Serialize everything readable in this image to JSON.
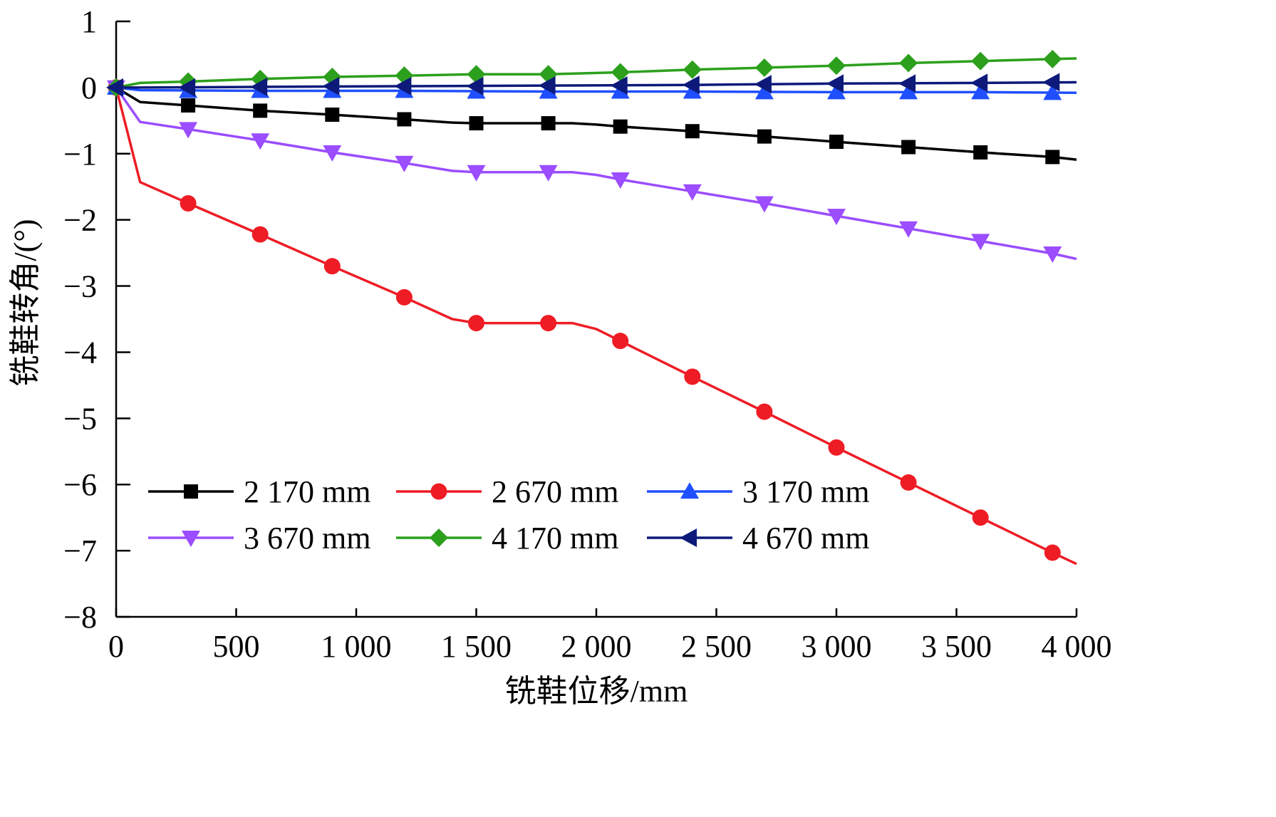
{
  "chart_data": {
    "type": "line",
    "xlabel": "铣鞋位移/mm",
    "ylabel": "铣鞋转角/(°)",
    "xlim": [
      0,
      4000
    ],
    "ylim": [
      -8,
      1
    ],
    "x_ticks": [
      0,
      500,
      1000,
      1500,
      2000,
      2500,
      3000,
      3500,
      4000
    ],
    "x_tick_labels": [
      "0",
      "500",
      "1 000",
      "1 500",
      "2 000",
      "2 500",
      "3 000",
      "3 500",
      "4 000"
    ],
    "y_ticks": [
      1,
      0,
      -1,
      -2,
      -3,
      -4,
      -5,
      -6,
      -7,
      -8
    ],
    "y_tick_labels": [
      "1",
      "0",
      "−1",
      "−2",
      "−3",
      "−4",
      "−5",
      "−6",
      "−7",
      "−8"
    ],
    "grid": false,
    "legend_position": "bottom-left, two rows of three",
    "series": [
      {
        "name": "2 170 mm",
        "color": "#000000",
        "marker": "square",
        "line": [
          [
            0,
            0
          ],
          [
            100,
            -0.22
          ],
          [
            300,
            -0.27
          ],
          [
            600,
            -0.35
          ],
          [
            900,
            -0.41
          ],
          [
            1200,
            -0.48
          ],
          [
            1400,
            -0.53
          ],
          [
            1500,
            -0.54
          ],
          [
            1800,
            -0.54
          ],
          [
            1900,
            -0.54
          ],
          [
            2000,
            -0.56
          ],
          [
            2100,
            -0.59
          ],
          [
            2400,
            -0.66
          ],
          [
            2700,
            -0.74
          ],
          [
            3000,
            -0.82
          ],
          [
            3300,
            -0.9
          ],
          [
            3600,
            -0.98
          ],
          [
            3900,
            -1.05
          ],
          [
            4000,
            -1.09
          ]
        ],
        "markers": [
          [
            0,
            0
          ],
          [
            300,
            -0.27
          ],
          [
            600,
            -0.35
          ],
          [
            900,
            -0.41
          ],
          [
            1200,
            -0.48
          ],
          [
            1500,
            -0.54
          ],
          [
            1800,
            -0.54
          ],
          [
            2100,
            -0.59
          ],
          [
            2400,
            -0.66
          ],
          [
            2700,
            -0.74
          ],
          [
            3000,
            -0.82
          ],
          [
            3300,
            -0.9
          ],
          [
            3600,
            -0.98
          ],
          [
            3900,
            -1.05
          ]
        ]
      },
      {
        "name": "2 670 mm",
        "color": "#ee1c25",
        "marker": "circle",
        "line": [
          [
            0,
            0
          ],
          [
            100,
            -1.43
          ],
          [
            300,
            -1.75
          ],
          [
            600,
            -2.22
          ],
          [
            900,
            -2.7
          ],
          [
            1200,
            -3.17
          ],
          [
            1400,
            -3.5
          ],
          [
            1500,
            -3.56
          ],
          [
            1800,
            -3.56
          ],
          [
            1900,
            -3.56
          ],
          [
            2000,
            -3.65
          ],
          [
            2100,
            -3.83
          ],
          [
            2400,
            -4.37
          ],
          [
            2700,
            -4.9
          ],
          [
            3000,
            -5.44
          ],
          [
            3300,
            -5.97
          ],
          [
            3600,
            -6.5
          ],
          [
            3900,
            -7.03
          ],
          [
            4000,
            -7.2
          ]
        ],
        "markers": [
          [
            0,
            0
          ],
          [
            300,
            -1.75
          ],
          [
            600,
            -2.22
          ],
          [
            900,
            -2.7
          ],
          [
            1200,
            -3.17
          ],
          [
            1500,
            -3.56
          ],
          [
            1800,
            -3.56
          ],
          [
            2100,
            -3.83
          ],
          [
            2400,
            -4.37
          ],
          [
            2700,
            -4.9
          ],
          [
            3000,
            -5.44
          ],
          [
            3300,
            -5.97
          ],
          [
            3600,
            -6.5
          ],
          [
            3900,
            -7.03
          ]
        ]
      },
      {
        "name": "3 170 mm",
        "color": "#1f4fff",
        "marker": "triangle-up",
        "line": [
          [
            0,
            0
          ],
          [
            100,
            -0.04
          ],
          [
            600,
            -0.05
          ],
          [
            1200,
            -0.05
          ],
          [
            1800,
            -0.06
          ],
          [
            2400,
            -0.06
          ],
          [
            3000,
            -0.07
          ],
          [
            3600,
            -0.07
          ],
          [
            4000,
            -0.08
          ]
        ],
        "markers": [
          [
            0,
            0
          ],
          [
            300,
            -0.05
          ],
          [
            600,
            -0.05
          ],
          [
            900,
            -0.05
          ],
          [
            1200,
            -0.05
          ],
          [
            1500,
            -0.06
          ],
          [
            1800,
            -0.06
          ],
          [
            2100,
            -0.06
          ],
          [
            2400,
            -0.06
          ],
          [
            2700,
            -0.07
          ],
          [
            3000,
            -0.07
          ],
          [
            3300,
            -0.07
          ],
          [
            3600,
            -0.07
          ],
          [
            3900,
            -0.08
          ]
        ]
      },
      {
        "name": "3 670 mm",
        "color": "#9b4dff",
        "marker": "triangle-down",
        "line": [
          [
            0,
            0
          ],
          [
            100,
            -0.52
          ],
          [
            300,
            -0.63
          ],
          [
            600,
            -0.8
          ],
          [
            900,
            -0.98
          ],
          [
            1200,
            -1.14
          ],
          [
            1400,
            -1.26
          ],
          [
            1500,
            -1.28
          ],
          [
            1800,
            -1.28
          ],
          [
            1900,
            -1.28
          ],
          [
            2000,
            -1.32
          ],
          [
            2100,
            -1.39
          ],
          [
            2400,
            -1.57
          ],
          [
            2700,
            -1.75
          ],
          [
            3000,
            -1.94
          ],
          [
            3300,
            -2.13
          ],
          [
            3600,
            -2.32
          ],
          [
            3900,
            -2.51
          ],
          [
            4000,
            -2.59
          ]
        ],
        "markers": [
          [
            0,
            0
          ],
          [
            300,
            -0.63
          ],
          [
            600,
            -0.8
          ],
          [
            900,
            -0.98
          ],
          [
            1200,
            -1.14
          ],
          [
            1500,
            -1.28
          ],
          [
            1800,
            -1.28
          ],
          [
            2100,
            -1.39
          ],
          [
            2400,
            -1.57
          ],
          [
            2700,
            -1.75
          ],
          [
            3000,
            -1.94
          ],
          [
            3300,
            -2.13
          ],
          [
            3600,
            -2.32
          ],
          [
            3900,
            -2.51
          ]
        ]
      },
      {
        "name": "4 170 mm",
        "color": "#2ca01c",
        "marker": "diamond",
        "line": [
          [
            0,
            0
          ],
          [
            100,
            0.07
          ],
          [
            300,
            0.09
          ],
          [
            600,
            0.13
          ],
          [
            900,
            0.16
          ],
          [
            1200,
            0.18
          ],
          [
            1500,
            0.2
          ],
          [
            1800,
            0.2
          ],
          [
            2100,
            0.23
          ],
          [
            2400,
            0.27
          ],
          [
            2700,
            0.3
          ],
          [
            3000,
            0.33
          ],
          [
            3300,
            0.37
          ],
          [
            3600,
            0.4
          ],
          [
            3900,
            0.43
          ],
          [
            4000,
            0.44
          ]
        ],
        "markers": [
          [
            0,
            0
          ],
          [
            300,
            0.09
          ],
          [
            600,
            0.13
          ],
          [
            900,
            0.16
          ],
          [
            1200,
            0.18
          ],
          [
            1500,
            0.2
          ],
          [
            1800,
            0.2
          ],
          [
            2100,
            0.23
          ],
          [
            2400,
            0.27
          ],
          [
            2700,
            0.3
          ],
          [
            3000,
            0.33
          ],
          [
            3300,
            0.37
          ],
          [
            3600,
            0.4
          ],
          [
            3900,
            0.43
          ]
        ]
      },
      {
        "name": "4 670 mm",
        "color": "#0d1a7a",
        "marker": "triangle-left",
        "line": [
          [
            0,
            0
          ],
          [
            100,
            0
          ],
          [
            600,
            0.01
          ],
          [
            1200,
            0.02
          ],
          [
            1800,
            0.03
          ],
          [
            2400,
            0.04
          ],
          [
            3000,
            0.06
          ],
          [
            3600,
            0.07
          ],
          [
            4000,
            0.08
          ]
        ],
        "markers": [
          [
            0,
            0
          ],
          [
            300,
            0
          ],
          [
            600,
            0.01
          ],
          [
            900,
            0.02
          ],
          [
            1200,
            0.02
          ],
          [
            1500,
            0.02
          ],
          [
            1800,
            0.03
          ],
          [
            2100,
            0.03
          ],
          [
            2400,
            0.04
          ],
          [
            2700,
            0.05
          ],
          [
            3000,
            0.06
          ],
          [
            3300,
            0.06
          ],
          [
            3600,
            0.07
          ],
          [
            3900,
            0.08
          ]
        ]
      }
    ]
  }
}
